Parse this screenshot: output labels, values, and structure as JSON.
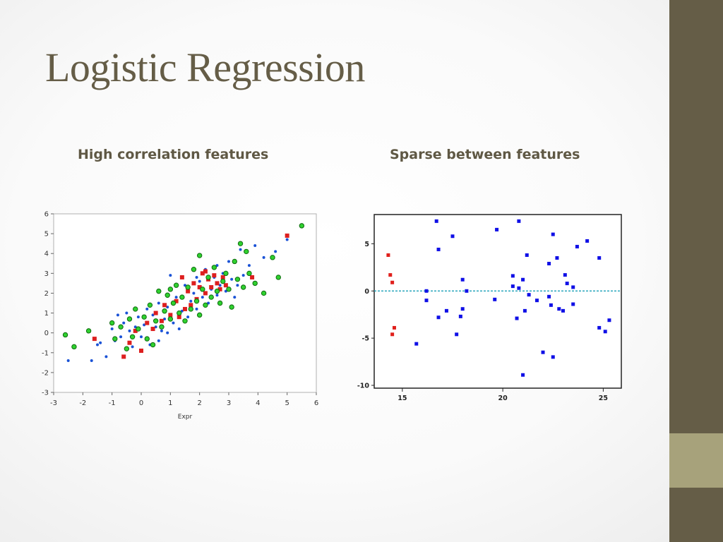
{
  "slide": {
    "title": "Logistic Regression",
    "left_heading": "High correlation features",
    "right_heading": "Sparse between features",
    "colors": {
      "title": "#655d47",
      "sidebar": "#655d47",
      "sidebar_accent": "#a7a27b"
    }
  },
  "chart_data": [
    {
      "type": "scatter",
      "title": "",
      "xlabel": "Expr",
      "ylabel": "",
      "xlim": [
        -3,
        6
      ],
      "ylim": [
        -3,
        6
      ],
      "x_ticks": [
        -3,
        -2,
        -1,
        0,
        1,
        2,
        3,
        4,
        5,
        6
      ],
      "y_ticks": [
        -3,
        -2,
        -1,
        0,
        1,
        2,
        3,
        4,
        5,
        6
      ],
      "grid": false,
      "series": [
        {
          "color": "#1a52d6",
          "marker": "dot",
          "points": [
            [
              -2.5,
              -1.4
            ],
            [
              -1.7,
              -1.4
            ],
            [
              -1.4,
              -0.5
            ],
            [
              -1.2,
              -1.2
            ],
            [
              -1.0,
              0.2
            ],
            [
              -0.9,
              -0.4
            ],
            [
              -0.7,
              -0.2
            ],
            [
              -0.6,
              0.5
            ],
            [
              -0.5,
              1.0
            ],
            [
              -0.4,
              0.1
            ],
            [
              -0.3,
              -0.7
            ],
            [
              -0.2,
              0.3
            ],
            [
              -0.1,
              0.8
            ],
            [
              0.0,
              -0.2
            ],
            [
              0.1,
              0.4
            ],
            [
              0.2,
              1.2
            ],
            [
              0.3,
              -0.6
            ],
            [
              0.4,
              0.9
            ],
            [
              0.5,
              0.3
            ],
            [
              0.6,
              1.5
            ],
            [
              0.7,
              0.1
            ],
            [
              0.8,
              0.7
            ],
            [
              0.9,
              1.3
            ],
            [
              1.0,
              2.9
            ],
            [
              1.1,
              0.5
            ],
            [
              1.2,
              1.8
            ],
            [
              1.3,
              0.2
            ],
            [
              1.4,
              1.1
            ],
            [
              1.5,
              2.4
            ],
            [
              1.6,
              0.8
            ],
            [
              1.7,
              1.6
            ],
            [
              1.8,
              2.0
            ],
            [
              1.9,
              1.2
            ],
            [
              2.0,
              2.6
            ],
            [
              2.1,
              1.8
            ],
            [
              2.2,
              3.2
            ],
            [
              2.3,
              1.5
            ],
            [
              2.4,
              2.2
            ],
            [
              2.5,
              2.8
            ],
            [
              2.6,
              1.9
            ],
            [
              2.7,
              2.4
            ],
            [
              2.8,
              3.0
            ],
            [
              2.9,
              2.1
            ],
            [
              3.0,
              3.6
            ],
            [
              3.1,
              2.7
            ],
            [
              3.2,
              1.8
            ],
            [
              3.4,
              4.2
            ],
            [
              3.5,
              2.9
            ],
            [
              3.7,
              3.4
            ],
            [
              3.9,
              4.4
            ],
            [
              4.2,
              3.8
            ],
            [
              4.6,
              4.1
            ],
            [
              5.0,
              4.7
            ],
            [
              -0.8,
              0.9
            ],
            [
              0.6,
              -0.4
            ],
            [
              1.9,
              2.8
            ],
            [
              2.6,
              3.4
            ],
            [
              3.3,
              2.4
            ],
            [
              -1.5,
              -0.6
            ],
            [
              0.9,
              0.0
            ]
          ]
        },
        {
          "color": "#dd1f1f",
          "marker": "square",
          "points": [
            [
              -1.6,
              -0.3
            ],
            [
              -0.6,
              -1.2
            ],
            [
              -0.4,
              -0.5
            ],
            [
              -0.2,
              0.1
            ],
            [
              0.0,
              -0.9
            ],
            [
              0.2,
              0.5
            ],
            [
              0.4,
              0.2
            ],
            [
              0.5,
              1.0
            ],
            [
              0.7,
              0.6
            ],
            [
              0.8,
              1.4
            ],
            [
              1.0,
              0.9
            ],
            [
              1.2,
              1.6
            ],
            [
              1.3,
              0.8
            ],
            [
              1.4,
              2.8
            ],
            [
              1.5,
              1.2
            ],
            [
              1.6,
              2.1
            ],
            [
              1.7,
              1.4
            ],
            [
              1.8,
              2.5
            ],
            [
              1.9,
              1.7
            ],
            [
              2.0,
              2.3
            ],
            [
              2.1,
              3.0
            ],
            [
              2.2,
              2.0
            ],
            [
              2.3,
              2.7
            ],
            [
              2.4,
              2.3
            ],
            [
              2.5,
              2.9
            ],
            [
              2.6,
              2.5
            ],
            [
              2.7,
              2.2
            ],
            [
              2.8,
              2.8
            ],
            [
              2.9,
              2.4
            ],
            [
              3.8,
              2.8
            ],
            [
              5.0,
              4.9
            ],
            [
              2.2,
              3.1
            ]
          ]
        },
        {
          "color": "#2fd12f",
          "marker": "circle",
          "points": [
            [
              -2.6,
              -0.1
            ],
            [
              -2.3,
              -0.7
            ],
            [
              -1.8,
              0.1
            ],
            [
              -1.0,
              0.5
            ],
            [
              -0.9,
              -0.3
            ],
            [
              -0.7,
              0.3
            ],
            [
              -0.5,
              -0.8
            ],
            [
              -0.4,
              0.7
            ],
            [
              -0.2,
              1.2
            ],
            [
              -0.1,
              0.2
            ],
            [
              0.1,
              0.8
            ],
            [
              0.2,
              -0.3
            ],
            [
              0.3,
              1.4
            ],
            [
              0.5,
              0.6
            ],
            [
              0.6,
              2.1
            ],
            [
              0.7,
              0.3
            ],
            [
              0.8,
              1.1
            ],
            [
              0.9,
              1.9
            ],
            [
              1.0,
              0.7
            ],
            [
              1.1,
              1.5
            ],
            [
              1.2,
              2.4
            ],
            [
              1.3,
              1.0
            ],
            [
              1.4,
              1.8
            ],
            [
              1.5,
              0.6
            ],
            [
              1.6,
              2.3
            ],
            [
              1.7,
              1.2
            ],
            [
              1.8,
              3.2
            ],
            [
              1.9,
              1.6
            ],
            [
              2.0,
              3.9
            ],
            [
              2.1,
              2.2
            ],
            [
              2.2,
              1.4
            ],
            [
              2.3,
              2.8
            ],
            [
              2.4,
              1.8
            ],
            [
              2.5,
              3.3
            ],
            [
              2.6,
              2.1
            ],
            [
              2.7,
              1.5
            ],
            [
              2.8,
              2.6
            ],
            [
              2.9,
              3.0
            ],
            [
              3.0,
              2.2
            ],
            [
              3.1,
              1.3
            ],
            [
              3.2,
              3.6
            ],
            [
              3.3,
              2.7
            ],
            [
              3.4,
              4.5
            ],
            [
              3.5,
              2.3
            ],
            [
              3.6,
              4.1
            ],
            [
              3.7,
              3.0
            ],
            [
              3.9,
              2.5
            ],
            [
              4.2,
              2.0
            ],
            [
              4.5,
              3.8
            ],
            [
              4.7,
              2.8
            ],
            [
              5.5,
              5.4
            ],
            [
              -0.3,
              -0.2
            ],
            [
              0.4,
              -0.6
            ],
            [
              1.0,
              2.2
            ],
            [
              2.0,
              0.9
            ]
          ]
        }
      ]
    },
    {
      "type": "scatter",
      "title": "",
      "xlabel": "",
      "ylabel": "",
      "xlim": [
        13.6,
        25.9
      ],
      "ylim": [
        -10.3,
        8.1
      ],
      "x_ticks": [
        15,
        20,
        25
      ],
      "y_ticks": [
        5,
        0,
        -5,
        -10
      ],
      "reference_line": {
        "y": 0,
        "color": "#1aa0b8",
        "style": "dashed"
      },
      "grid": false,
      "series": [
        {
          "color": "#e0201c",
          "marker": "square",
          "points": [
            [
              14.3,
              3.8
            ],
            [
              14.4,
              1.7
            ],
            [
              14.5,
              0.9
            ],
            [
              14.5,
              -4.6
            ],
            [
              14.6,
              -3.9
            ]
          ]
        },
        {
          "color": "#1010e6",
          "marker": "square",
          "points": [
            [
              15.7,
              -5.6
            ],
            [
              16.2,
              0.0
            ],
            [
              16.2,
              -1.0
            ],
            [
              16.7,
              7.4
            ],
            [
              16.8,
              4.4
            ],
            [
              16.8,
              -2.8
            ],
            [
              17.2,
              -2.1
            ],
            [
              17.5,
              5.8
            ],
            [
              17.7,
              -4.6
            ],
            [
              17.9,
              -2.7
            ],
            [
              18.0,
              1.2
            ],
            [
              18.0,
              -1.9
            ],
            [
              18.2,
              0.0
            ],
            [
              19.6,
              -0.9
            ],
            [
              19.7,
              6.5
            ],
            [
              20.5,
              1.6
            ],
            [
              20.5,
              0.5
            ],
            [
              20.7,
              -2.9
            ],
            [
              20.8,
              7.4
            ],
            [
              20.8,
              0.3
            ],
            [
              21.0,
              1.2
            ],
            [
              21.0,
              -8.9
            ],
            [
              21.1,
              -2.1
            ],
            [
              21.2,
              3.8
            ],
            [
              21.3,
              -0.4
            ],
            [
              21.7,
              -1.0
            ],
            [
              22.0,
              -6.5
            ],
            [
              22.3,
              -0.6
            ],
            [
              22.3,
              2.9
            ],
            [
              22.4,
              -1.5
            ],
            [
              22.5,
              6.0
            ],
            [
              22.5,
              -7.0
            ],
            [
              22.7,
              3.5
            ],
            [
              22.8,
              -1.9
            ],
            [
              23.0,
              -2.1
            ],
            [
              23.1,
              1.7
            ],
            [
              23.2,
              0.8
            ],
            [
              23.5,
              0.4
            ],
            [
              23.5,
              -1.4
            ],
            [
              23.7,
              4.7
            ],
            [
              24.2,
              5.3
            ],
            [
              24.8,
              3.5
            ],
            [
              24.8,
              -3.9
            ],
            [
              25.1,
              -4.3
            ],
            [
              25.3,
              -3.1
            ]
          ]
        }
      ]
    }
  ]
}
